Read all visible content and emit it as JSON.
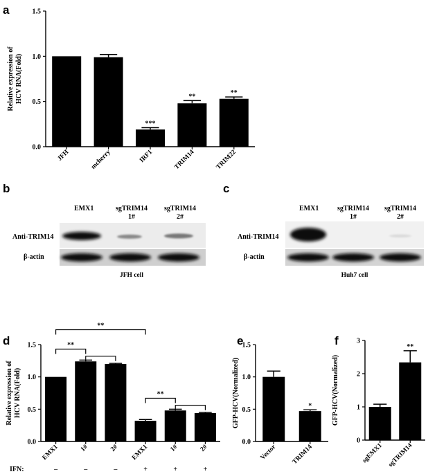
{
  "panels": {
    "a": "a",
    "b": "b",
    "c": "c",
    "d": "d",
    "e": "e",
    "f": "f"
  },
  "chart_data": [
    {
      "id": "a",
      "type": "bar",
      "ylabel_lines": [
        "Relative expression of",
        "HCV RNA(Fold)"
      ],
      "categories": [
        "JFH",
        "mcherry",
        "IRF1",
        "TRIM14",
        "TRIM22"
      ],
      "values": [
        1.0,
        0.99,
        0.19,
        0.48,
        0.53
      ],
      "errors": [
        0.0,
        0.03,
        0.02,
        0.03,
        0.02
      ],
      "significance": [
        "",
        "",
        "***",
        "**",
        "**"
      ],
      "ylim": [
        0,
        1.5
      ],
      "yticks": [
        "0.0",
        "0.5",
        "1.0",
        "1.5"
      ],
      "grid": false
    },
    {
      "id": "d",
      "type": "bar",
      "ylabel_lines": [
        "Relative expression of",
        "HCV RNA(Fold)"
      ],
      "categories": [
        "EMX1",
        "1#",
        "2#",
        "EMX1",
        "1#",
        "2#"
      ],
      "values": [
        1.0,
        1.24,
        1.2,
        0.32,
        0.48,
        0.44
      ],
      "errors": [
        0.0,
        0.02,
        0.01,
        0.02,
        0.02,
        0.01
      ],
      "ylim": [
        0,
        1.5
      ],
      "yticks": [
        "0.0",
        "0.5",
        "1.0",
        "1.5"
      ],
      "ifn_label": "IFN:",
      "ifn": [
        "–",
        "–",
        "–",
        "+",
        "+",
        "+"
      ],
      "brackets": [
        {
          "from": 0,
          "to": 1,
          "label": "**"
        },
        {
          "from": 1,
          "to": 2,
          "label": ""
        },
        {
          "from": 0,
          "to": 3,
          "label": "**"
        },
        {
          "from": 3,
          "to": 4,
          "label": "**"
        },
        {
          "from": 4,
          "to": 5,
          "label": ""
        }
      ],
      "grid": false
    },
    {
      "id": "e",
      "type": "bar",
      "ylabel_lines": [
        "GFP-HCV(Normalized)"
      ],
      "categories": [
        "Vector",
        "TRIM14"
      ],
      "values": [
        1.0,
        0.47
      ],
      "errors": [
        0.09,
        0.02
      ],
      "significance": [
        "",
        "*"
      ],
      "ylim": [
        0,
        1.5
      ],
      "yticks": [
        "0.0",
        "0.5",
        "1.0",
        "1.5"
      ],
      "grid": false
    },
    {
      "id": "f",
      "type": "bar",
      "ylabel_lines": [
        "GFP-HCV(Normalized)"
      ],
      "categories": [
        "sgEMX1",
        "sgTRIM14"
      ],
      "values": [
        1.0,
        2.34
      ],
      "errors": [
        0.08,
        0.35
      ],
      "significance": [
        "",
        "**"
      ],
      "ylim": [
        0,
        3
      ],
      "yticks": [
        "0",
        "1",
        "2",
        "3"
      ],
      "grid": false
    }
  ],
  "blots": [
    {
      "id": "b",
      "lanes": [
        [
          "EMX1"
        ],
        [
          "sgTRIM14",
          "1#"
        ],
        [
          "sgTRIM14",
          "2#"
        ]
      ],
      "rows": [
        "Anti-TRIM14",
        "β-actin"
      ],
      "caption": "JFH cell"
    },
    {
      "id": "c",
      "lanes": [
        [
          "EMX1"
        ],
        [
          "sgTRIM14",
          "1#"
        ],
        [
          "sgTRIM14",
          "2#"
        ]
      ],
      "rows": [
        "Anti-TRIM14",
        "β-actin"
      ],
      "caption": "Huh7 cell"
    }
  ]
}
